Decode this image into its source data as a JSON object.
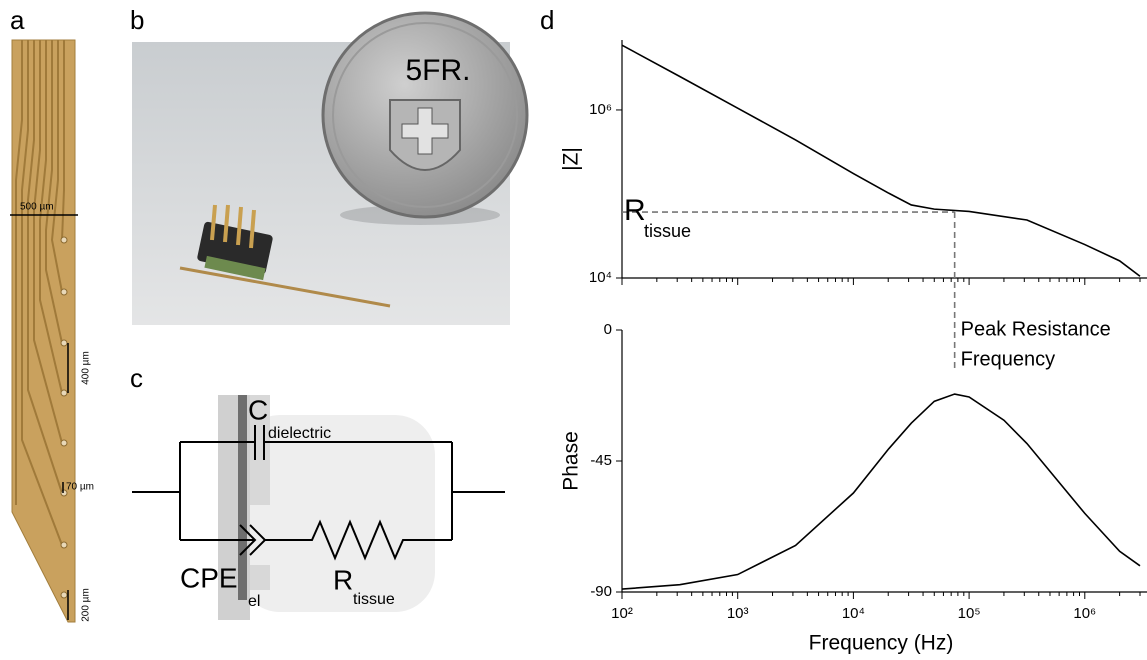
{
  "panel_labels": [
    "a",
    "b",
    "c",
    "d"
  ],
  "probe": {
    "scale_labels": [
      "500 µm",
      "400 µm",
      "70 µm",
      "200 µm"
    ]
  },
  "photo": {
    "coin_text": "5FR."
  },
  "circuit": {
    "capacitor": {
      "main": "C",
      "sub": "dielectric"
    },
    "cpe": {
      "main": "CPE",
      "sub": "el"
    },
    "resistor": {
      "main": "R",
      "sub": "tissue"
    }
  },
  "chart_data": [
    {
      "type": "line",
      "y_label": "|Z|",
      "log_x": true,
      "log_y": true,
      "xlim": [
        100,
        3000000
      ],
      "ylim": [
        10000,
        6800000
      ],
      "yticks": [
        {
          "value": 10000,
          "label": "10⁴"
        },
        {
          "value": 1000000,
          "label": "10⁶"
        }
      ],
      "x": [
        100,
        316,
        1000,
        3162,
        10000,
        20000,
        31623,
        50000,
        100000,
        316228,
        1000000,
        2000000,
        3000000
      ],
      "series": [
        {
          "color": "#000000",
          "values": [
            5900000,
            2500000,
            1050000,
            440000,
            175000,
            103000,
            74000,
            66000,
            62000,
            49000,
            25000,
            16000,
            10500
          ]
        }
      ],
      "annotations": {
        "r_tissue": {
          "main": "R",
          "sub": "tissue",
          "value": 61000
        },
        "peak_frequency": {
          "value": 75000,
          "text": [
            "Peak Resistance",
            "Frequency"
          ]
        },
        "color": "#777777"
      }
    },
    {
      "type": "line",
      "x_label": "Frequency (Hz)",
      "y_label": "Phase",
      "log_x": true,
      "xlim": [
        100,
        3000000
      ],
      "ylim": [
        -90,
        0
      ],
      "xticks": [
        {
          "value": 100,
          "label": "10²"
        },
        {
          "value": 1000,
          "label": "10³"
        },
        {
          "value": 10000,
          "label": "10⁴"
        },
        {
          "value": 100000,
          "label": "10⁵"
        },
        {
          "value": 1000000,
          "label": "10⁶"
        }
      ],
      "yticks": [
        0,
        -45,
        -90
      ],
      "x": [
        100,
        316,
        1000,
        3162,
        10000,
        20000,
        31623,
        50000,
        75000,
        100000,
        200000,
        316228,
        1000000,
        2000000,
        3000000
      ],
      "series": [
        {
          "color": "#000000",
          "values": [
            -89,
            -87.5,
            -84,
            -74,
            -56,
            -41,
            -32,
            -24.5,
            -22,
            -23,
            -31,
            -39,
            -63,
            -76,
            -81
          ]
        }
      ]
    }
  ]
}
